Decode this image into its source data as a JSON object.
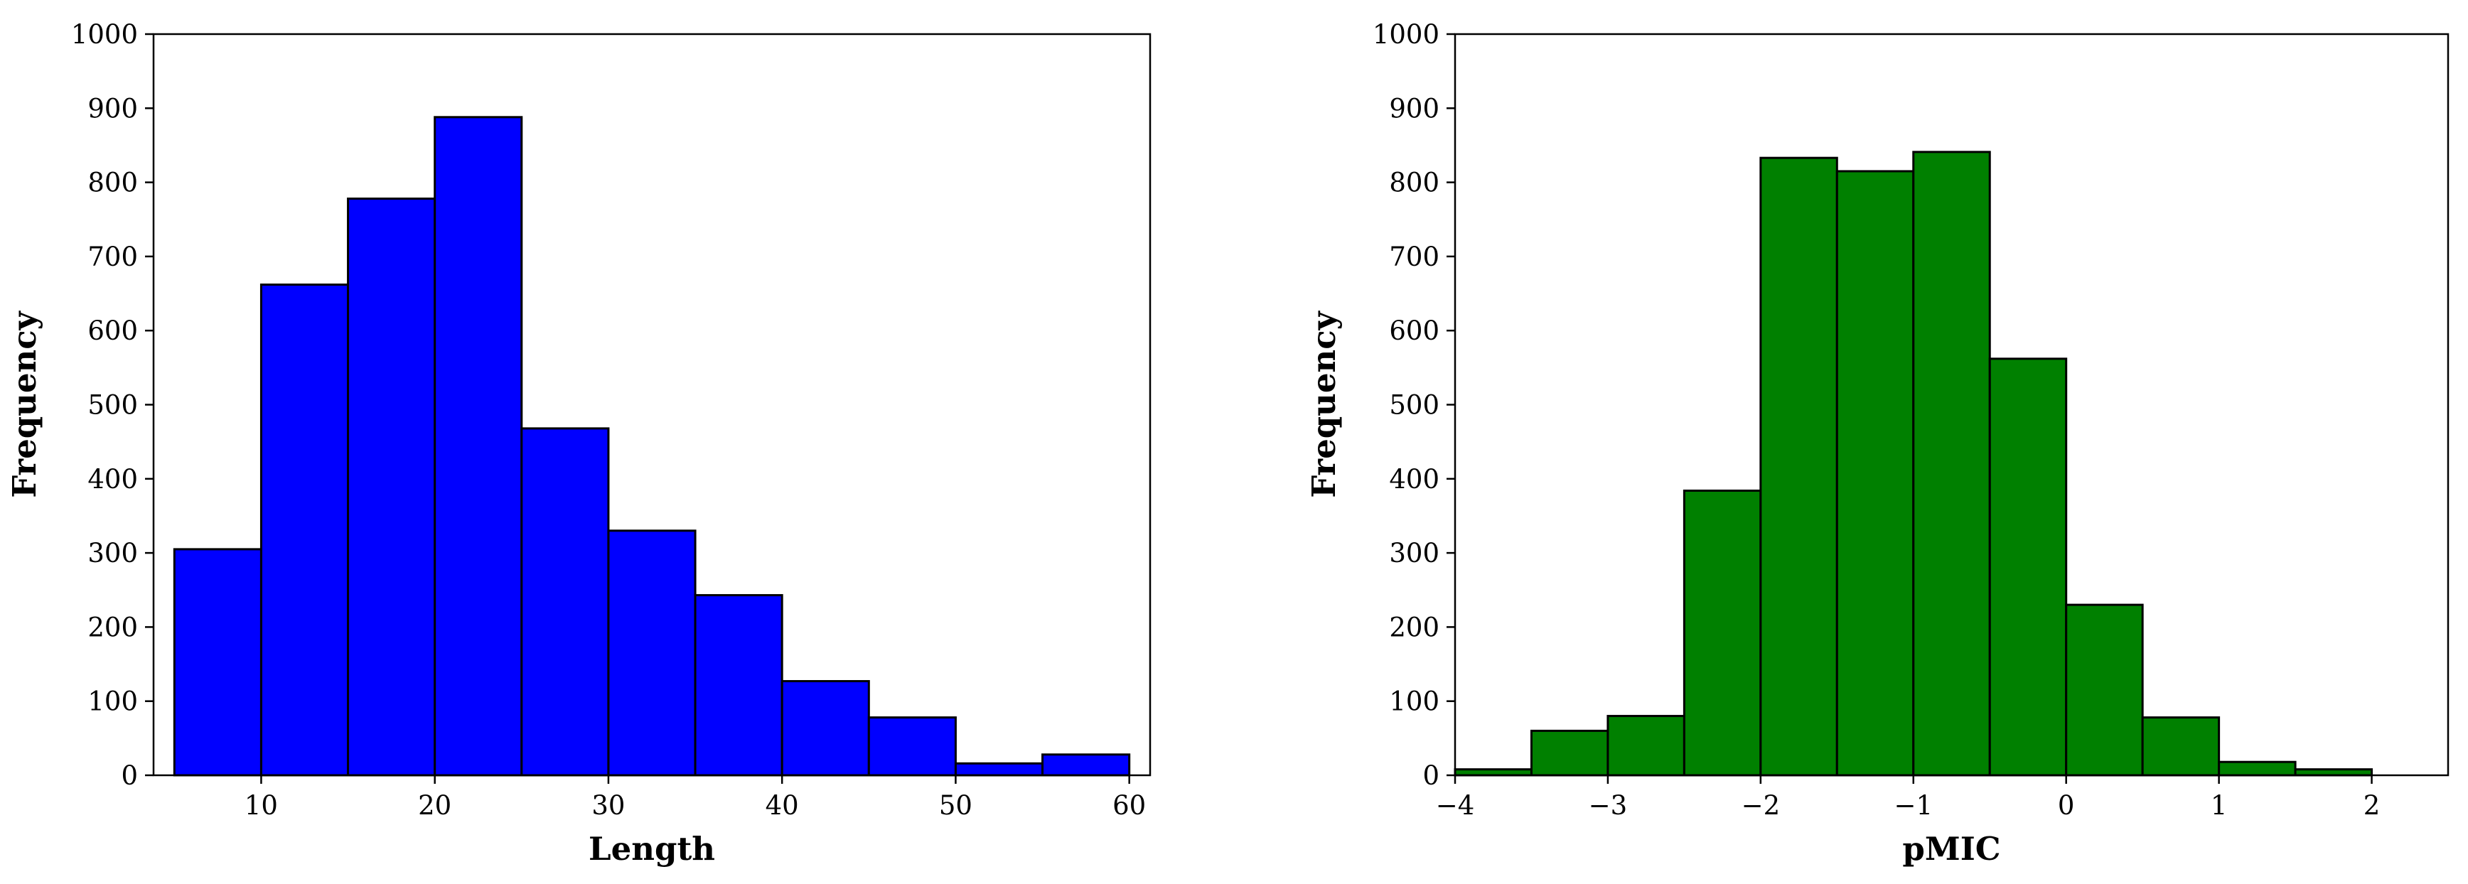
{
  "chart_data": [
    {
      "type": "bar",
      "subtype": "histogram",
      "xlabel": "Length",
      "ylabel": "Frequency",
      "color": "#0000ff",
      "edge_color": "#000000",
      "xlim": [
        3.8,
        61.2
      ],
      "ylim": [
        0,
        1000
      ],
      "bins": [
        {
          "x0": 5,
          "x1": 10,
          "value": 305
        },
        {
          "x0": 10,
          "x1": 15,
          "value": 662
        },
        {
          "x0": 15,
          "x1": 20,
          "value": 778
        },
        {
          "x0": 20,
          "x1": 25,
          "value": 888
        },
        {
          "x0": 25,
          "x1": 30,
          "value": 468
        },
        {
          "x0": 30,
          "x1": 35,
          "value": 330
        },
        {
          "x0": 35,
          "x1": 40,
          "value": 243
        },
        {
          "x0": 40,
          "x1": 45,
          "value": 127
        },
        {
          "x0": 45,
          "x1": 50,
          "value": 78
        },
        {
          "x0": 50,
          "x1": 55,
          "value": 16
        },
        {
          "x0": 55,
          "x1": 60,
          "value": 28
        }
      ],
      "x_ticks": [
        {
          "value": 10,
          "label": "10"
        },
        {
          "value": 20,
          "label": "20"
        },
        {
          "value": 30,
          "label": "30"
        },
        {
          "value": 40,
          "label": "40"
        },
        {
          "value": 50,
          "label": "50"
        },
        {
          "value": 60,
          "label": "60"
        }
      ],
      "y_ticks": [
        {
          "value": 0,
          "label": "0"
        },
        {
          "value": 100,
          "label": "100"
        },
        {
          "value": 200,
          "label": "200"
        },
        {
          "value": 300,
          "label": "300"
        },
        {
          "value": 400,
          "label": "400"
        },
        {
          "value": 500,
          "label": "500"
        },
        {
          "value": 600,
          "label": "600"
        },
        {
          "value": 700,
          "label": "700"
        },
        {
          "value": 800,
          "label": "800"
        },
        {
          "value": 900,
          "label": "900"
        },
        {
          "value": 1000,
          "label": "1000"
        }
      ],
      "grid": false
    },
    {
      "type": "bar",
      "subtype": "histogram",
      "xlabel": "pMIC",
      "ylabel": "Frequency",
      "color": "#008000",
      "edge_color": "#000000",
      "xlim": [
        -4,
        2.5
      ],
      "ylim": [
        0,
        1000
      ],
      "bins": [
        {
          "x0": -4.0,
          "x1": -3.5,
          "value": 8
        },
        {
          "x0": -3.5,
          "x1": -3.0,
          "value": 60
        },
        {
          "x0": -3.0,
          "x1": -2.5,
          "value": 80
        },
        {
          "x0": -2.5,
          "x1": -2.0,
          "value": 384
        },
        {
          "x0": -2.0,
          "x1": -1.5,
          "value": 833
        },
        {
          "x0": -1.5,
          "x1": -1.0,
          "value": 815
        },
        {
          "x0": -1.0,
          "x1": -0.5,
          "value": 841
        },
        {
          "x0": -0.5,
          "x1": 0.0,
          "value": 562
        },
        {
          "x0": 0.0,
          "x1": 0.5,
          "value": 230
        },
        {
          "x0": 0.5,
          "x1": 1.0,
          "value": 78
        },
        {
          "x0": 1.0,
          "x1": 1.5,
          "value": 18
        },
        {
          "x0": 1.5,
          "x1": 2.0,
          "value": 8
        }
      ],
      "x_ticks": [
        {
          "value": -4,
          "label": "−4"
        },
        {
          "value": -3,
          "label": "−3"
        },
        {
          "value": -2,
          "label": "−2"
        },
        {
          "value": -1,
          "label": "−1"
        },
        {
          "value": 0,
          "label": "0"
        },
        {
          "value": 1,
          "label": "1"
        },
        {
          "value": 2,
          "label": "2"
        }
      ],
      "y_ticks": [
        {
          "value": 0,
          "label": "0"
        },
        {
          "value": 100,
          "label": "100"
        },
        {
          "value": 200,
          "label": "200"
        },
        {
          "value": 300,
          "label": "300"
        },
        {
          "value": 400,
          "label": "400"
        },
        {
          "value": 500,
          "label": "500"
        },
        {
          "value": 600,
          "label": "600"
        },
        {
          "value": 700,
          "label": "700"
        },
        {
          "value": 800,
          "label": "800"
        },
        {
          "value": 900,
          "label": "900"
        },
        {
          "value": 1000,
          "label": "1000"
        }
      ],
      "grid": false
    }
  ]
}
